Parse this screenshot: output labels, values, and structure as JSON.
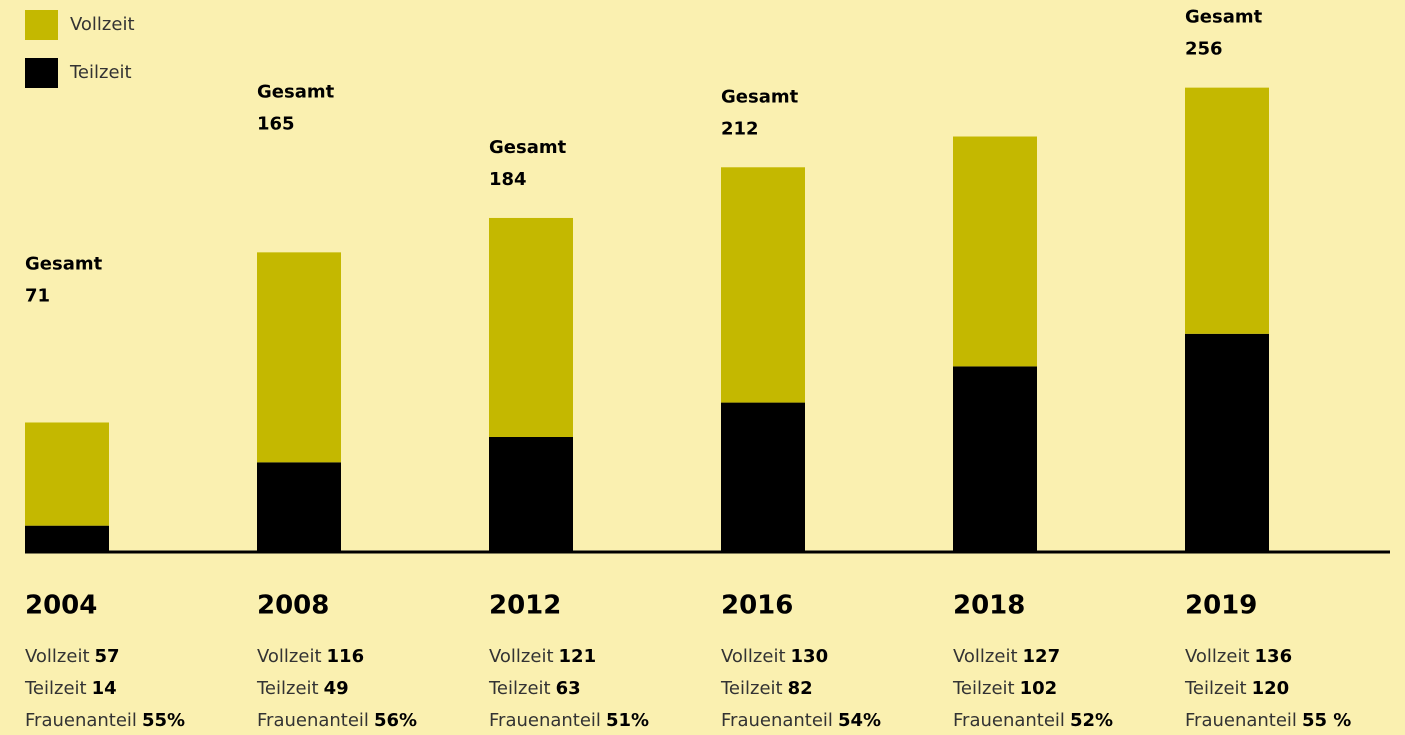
{
  "chart_data": {
    "type": "bar",
    "stacked": true,
    "categories": [
      "2004",
      "2008",
      "2012",
      "2016",
      "2018",
      "2019"
    ],
    "series": [
      {
        "name": "Vollzeit",
        "color": "#c4b800",
        "values": [
          57,
          116,
          121,
          130,
          127,
          136
        ]
      },
      {
        "name": "Teilzeit",
        "color": "#000000",
        "values": [
          14,
          49,
          63,
          82,
          102,
          120
        ]
      }
    ],
    "totals": {
      "name": "Gesamt",
      "values": [
        71,
        165,
        184,
        212,
        null,
        256
      ]
    },
    "share": {
      "name": "Frauenanteil",
      "values": [
        55,
        56,
        51,
        54,
        52,
        55
      ],
      "value_labels": [
        "55%",
        "56%",
        "51%",
        "54%",
        "52%",
        "55 %"
      ]
    }
  }
}
